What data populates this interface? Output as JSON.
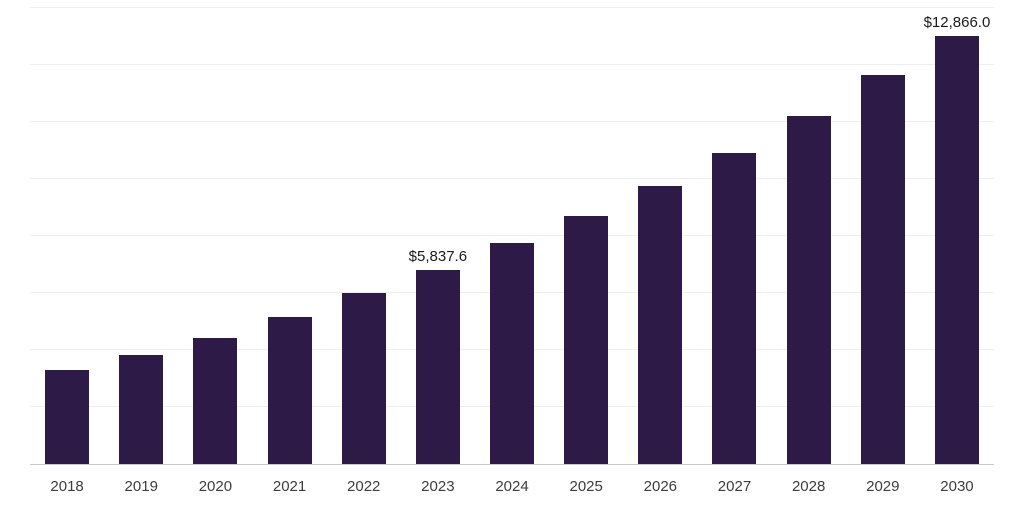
{
  "chart_data": {
    "type": "bar",
    "title": "",
    "xlabel": "",
    "ylabel": "",
    "categories": [
      "2018",
      "2019",
      "2020",
      "2021",
      "2022",
      "2023",
      "2024",
      "2025",
      "2026",
      "2027",
      "2028",
      "2029",
      "2030"
    ],
    "values": [
      2820,
      3260,
      3790,
      4420,
      5140,
      5837.6,
      6650,
      7450,
      8340,
      9350,
      10460,
      11690,
      12866.0
    ],
    "point_labels": {
      "2023": "$5,837.6",
      "2030": "$12,866.0"
    },
    "ylim": [
      0,
      13700
    ],
    "gridline_count": 8,
    "grid": "horizontal",
    "legend": "none",
    "bar_color": "#2e1a47",
    "gridline_color": "#efeff1",
    "axis_line_color": "#c9c9c9",
    "tick_label_color": "#3d3d3d",
    "data_label_color": "#1a1a1a",
    "background_color": "#ffffff"
  }
}
